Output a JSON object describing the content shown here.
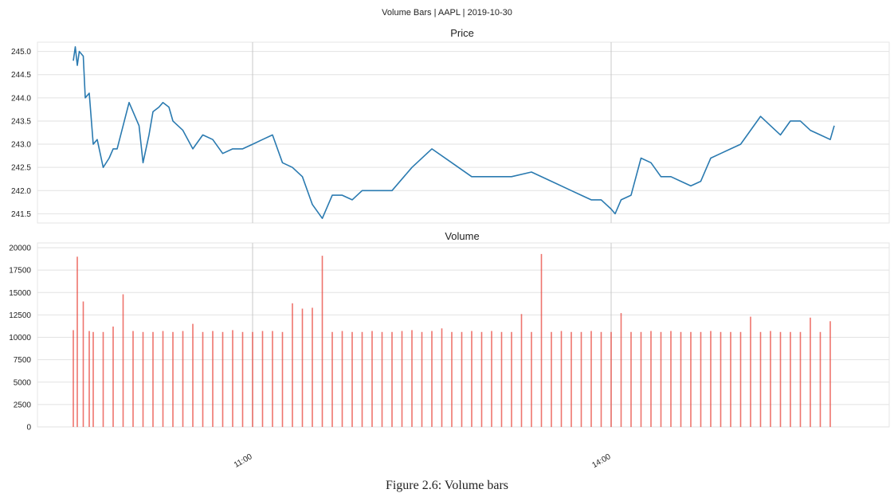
{
  "figure_title": "Volume Bars | AAPL | 2019-10-30",
  "caption": "Figure 2.6: Volume bars",
  "chart_data": [
    {
      "type": "line",
      "title": "Price",
      "xlabel": "",
      "ylabel": "",
      "color": "#2a7ab0",
      "ylim": [
        241.3,
        245.2
      ],
      "yticks": [
        241.5,
        242.0,
        242.5,
        243.0,
        243.5,
        244.0,
        244.5,
        245.0
      ],
      "yticklabels": [
        "241.5",
        "242.0",
        "242.5",
        "243.0",
        "243.5",
        "244.0",
        "244.5",
        "245.0"
      ],
      "xlim": [
        "09:30",
        "16:00"
      ],
      "xticks": [
        "11:00",
        "14:00"
      ],
      "x": [
        "09:30",
        "09:31",
        "09:32",
        "09:33",
        "09:35",
        "09:36",
        "09:38",
        "09:40",
        "09:42",
        "09:45",
        "09:48",
        "09:50",
        "09:52",
        "09:55",
        "09:58",
        "10:00",
        "10:03",
        "10:05",
        "10:08",
        "10:10",
        "10:13",
        "10:15",
        "10:18",
        "10:20",
        "10:25",
        "10:30",
        "10:35",
        "10:40",
        "10:45",
        "10:50",
        "10:55",
        "11:00",
        "11:05",
        "11:10",
        "11:15",
        "11:20",
        "11:25",
        "11:30",
        "11:35",
        "11:40",
        "11:45",
        "11:50",
        "11:55",
        "12:00",
        "12:10",
        "12:20",
        "12:30",
        "12:40",
        "12:50",
        "13:00",
        "13:10",
        "13:20",
        "13:30",
        "13:40",
        "13:45",
        "13:50",
        "13:55",
        "14:00",
        "14:02",
        "14:05",
        "14:10",
        "14:15",
        "14:20",
        "14:25",
        "14:30",
        "14:35",
        "14:40",
        "14:45",
        "14:50",
        "14:55",
        "15:00",
        "15:05",
        "15:10",
        "15:15",
        "15:20",
        "15:25",
        "15:30",
        "15:35",
        "15:40",
        "15:45",
        "15:50",
        "15:52"
      ],
      "y": [
        244.8,
        245.1,
        244.7,
        245.0,
        244.9,
        244.0,
        244.1,
        243.0,
        243.1,
        242.5,
        242.7,
        242.9,
        242.9,
        243.4,
        243.9,
        243.7,
        243.4,
        242.6,
        243.2,
        243.7,
        243.8,
        243.9,
        243.8,
        243.5,
        243.3,
        242.9,
        243.2,
        243.1,
        242.8,
        242.9,
        242.9,
        243.0,
        243.1,
        243.2,
        242.6,
        242.5,
        242.3,
        241.7,
        241.4,
        241.9,
        241.9,
        241.8,
        242.0,
        242.0,
        242.0,
        242.5,
        242.9,
        242.6,
        242.3,
        242.3,
        242.3,
        242.4,
        242.2,
        242.0,
        241.9,
        241.8,
        241.8,
        241.6,
        241.5,
        241.8,
        241.9,
        242.7,
        242.6,
        242.3,
        242.3,
        242.2,
        242.1,
        242.2,
        242.7,
        242.8,
        242.9,
        243.0,
        243.3,
        243.6,
        243.4,
        243.2,
        243.5,
        243.5,
        243.3,
        243.2,
        243.1,
        243.4
      ]
    },
    {
      "type": "bar",
      "title": "Volume",
      "xlabel": "",
      "ylabel": "",
      "color": "#e8453c",
      "ylim": [
        0,
        20000
      ],
      "yticks": [
        0,
        2500,
        5000,
        7500,
        10000,
        12500,
        15000,
        17500,
        20000
      ],
      "yticklabels": [
        "0",
        "2500",
        "5000",
        "7500",
        "10000",
        "12500",
        "15000",
        "17500",
        "20000"
      ],
      "xlim": [
        "09:30",
        "16:00"
      ],
      "xticks": [
        "11:00",
        "14:00"
      ],
      "x": [
        "09:30",
        "09:32",
        "09:35",
        "09:38",
        "09:40",
        "09:45",
        "09:50",
        "09:55",
        "10:00",
        "10:05",
        "10:10",
        "10:15",
        "10:20",
        "10:25",
        "10:30",
        "10:35",
        "10:40",
        "10:45",
        "10:50",
        "10:55",
        "11:00",
        "11:05",
        "11:10",
        "11:15",
        "11:20",
        "11:25",
        "11:30",
        "11:35",
        "11:40",
        "11:45",
        "11:50",
        "11:55",
        "12:00",
        "12:05",
        "12:10",
        "12:15",
        "12:20",
        "12:25",
        "12:30",
        "12:35",
        "12:40",
        "12:45",
        "12:50",
        "12:55",
        "13:00",
        "13:05",
        "13:10",
        "13:15",
        "13:20",
        "13:25",
        "13:30",
        "13:35",
        "13:40",
        "13:45",
        "13:50",
        "13:55",
        "14:00",
        "14:05",
        "14:10",
        "14:15",
        "14:20",
        "14:25",
        "14:30",
        "14:35",
        "14:40",
        "14:45",
        "14:50",
        "14:55",
        "15:00",
        "15:05",
        "15:10",
        "15:15",
        "15:20",
        "15:25",
        "15:30",
        "15:35",
        "15:40",
        "15:45",
        "15:50"
      ],
      "values": [
        10800,
        19000,
        14000,
        10700,
        10600,
        10600,
        11200,
        14800,
        10700,
        10600,
        10600,
        10700,
        10600,
        10700,
        11500,
        10600,
        10700,
        10600,
        10800,
        10600,
        10600,
        10700,
        10700,
        10600,
        13800,
        13200,
        13300,
        19100,
        10600,
        10700,
        10600,
        10600,
        10700,
        10600,
        10600,
        10700,
        10800,
        10600,
        10700,
        11000,
        10600,
        10600,
        10700,
        10600,
        10700,
        10600,
        10600,
        12600,
        10600,
        19300,
        10600,
        10700,
        10600,
        10600,
        10700,
        10600,
        10600,
        12700,
        10600,
        10600,
        10700,
        10600,
        10700,
        10600,
        10600,
        10600,
        10700,
        10600,
        10600,
        10600,
        12300,
        10600,
        10700,
        10600,
        10600,
        10600,
        12200,
        10600,
        11800
      ]
    }
  ]
}
